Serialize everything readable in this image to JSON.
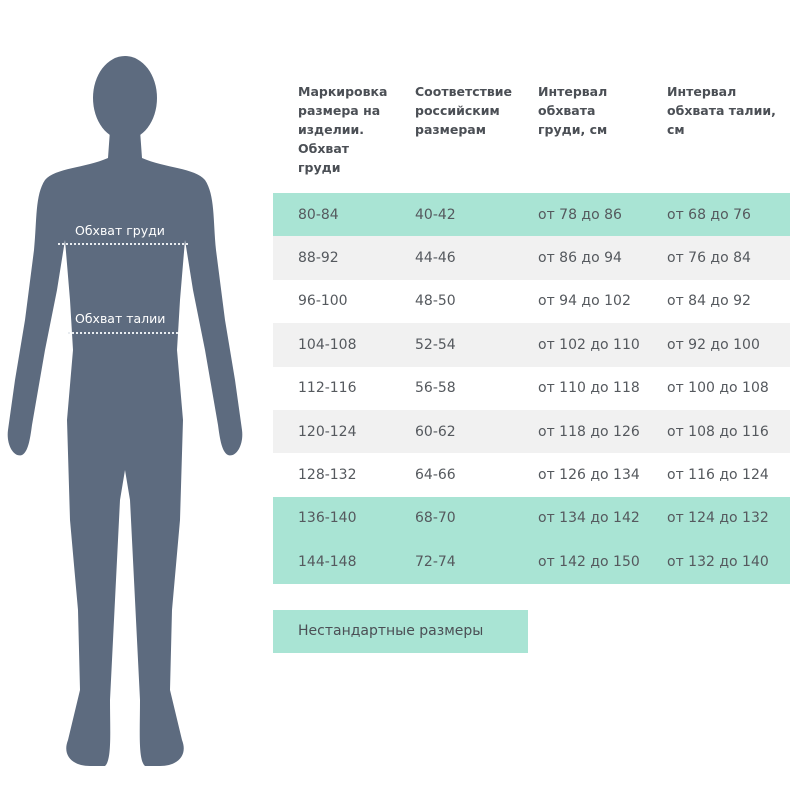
{
  "figure": {
    "chest_label": "Обхват груди",
    "waist_label": "Обхват талии",
    "color": "#5d6b7f"
  },
  "table": {
    "headers": [
      "Маркировка размера на изделии. Обхват груди",
      "Соответствие российским размерам",
      "Интервал обхвата груди, см",
      "Интервал обхвата талии, см"
    ],
    "rows": [
      {
        "style": "teal",
        "cells": [
          "80-84",
          "40-42",
          "от 78 до 86",
          "от 68 до 76"
        ]
      },
      {
        "style": "gray",
        "cells": [
          "88-92",
          "44-46",
          "от 86 до 94",
          "от 76 до 84"
        ]
      },
      {
        "style": "white",
        "cells": [
          "96-100",
          "48-50",
          "от 94 до 102",
          "от 84 до 92"
        ]
      },
      {
        "style": "gray",
        "cells": [
          "104-108",
          "52-54",
          "от 102 до 110",
          "от 92 до 100"
        ]
      },
      {
        "style": "white",
        "cells": [
          "112-116",
          "56-58",
          "от 110 до 118",
          "от 100 до 108"
        ]
      },
      {
        "style": "gray",
        "cells": [
          "120-124",
          "60-62",
          "от 118 до 126",
          "от 108 до 116"
        ]
      },
      {
        "style": "white",
        "cells": [
          "128-132",
          "64-66",
          "от 126 до 134",
          "от 116 до 124"
        ]
      },
      {
        "style": "teal",
        "cells": [
          "136-140",
          "68-70",
          "от 134 до 142",
          "от 124 до 132"
        ]
      },
      {
        "style": "teal",
        "cells": [
          "144-148",
          "72-74",
          "от 142 до 150",
          "от 132 до 140"
        ]
      }
    ]
  },
  "legend": {
    "label": "Нестандартные размеры",
    "color": "#a9e4d4"
  }
}
